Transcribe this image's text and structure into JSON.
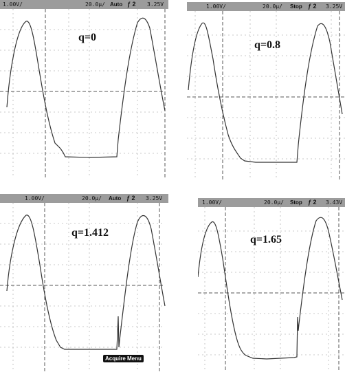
{
  "panels": [
    {
      "volts_div": "1.00V/",
      "time_div": "20.0µ/",
      "mode": "Auto",
      "trigger": "ƒ 2",
      "trigger_level": "3.25V",
      "q_label": "q=0"
    },
    {
      "volts_div": "1.00V/",
      "time_div": "20.0µ/",
      "mode": "Stop",
      "trigger": "ƒ 2",
      "trigger_level": "3.25V",
      "q_label": "q=0.8"
    },
    {
      "volts_div": "1.00V/",
      "time_div": "20.0µ/",
      "mode": "Auto",
      "trigger": "ƒ 2",
      "trigger_level": "3.25V",
      "q_label": "q=1.412",
      "menu_label": "Acquire Menu"
    },
    {
      "volts_div": "1.00V/",
      "time_div": "20.0µ/",
      "mode": "Stop",
      "trigger": "ƒ 2",
      "trigger_level": "3.43V",
      "q_label": "q=1.65"
    }
  ],
  "colors": {
    "statusbar": "#9c9c9c",
    "trace": "#333333",
    "grid": "#b8b8b8",
    "marker": "#555555"
  }
}
